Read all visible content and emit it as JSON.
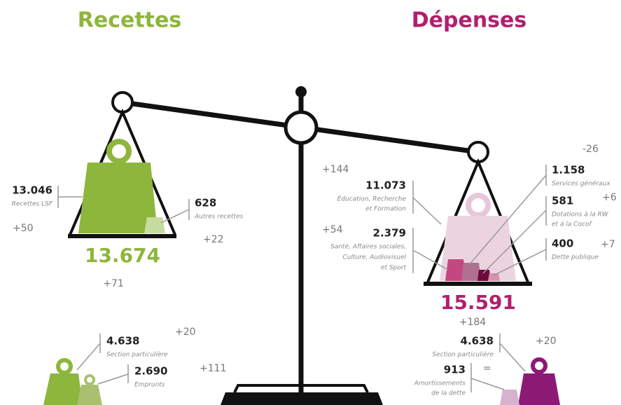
{
  "left": {
    "title": "Recettes",
    "items": [
      {
        "value": "13.046",
        "label": [
          "Recettes LSF"
        ],
        "change": "+50"
      },
      {
        "value": "628",
        "label": [
          "Autres recettes"
        ],
        "change": "+22"
      }
    ],
    "total": "13.674",
    "total_change": "+71",
    "bottom": [
      {
        "value": "4.638",
        "label": [
          "Section particulière"
        ],
        "change": "+20"
      },
      {
        "value": "2.690",
        "label": [
          "Emprunts"
        ],
        "change": "+111"
      }
    ]
  },
  "right": {
    "title": "Dépenses",
    "items": [
      {
        "value": "11.073",
        "label": [
          "Éducation, Recherche",
          "et Formation"
        ],
        "change": "+144"
      },
      {
        "value": "2.379",
        "label": [
          "Santé, Affaires sociales,",
          "Culture, Audiovisuel",
          "et Sport"
        ],
        "change": "+54"
      },
      {
        "value": "1.158",
        "label": [
          "Services généraux"
        ],
        "change": "-26"
      },
      {
        "value": "581",
        "label": [
          "Dotations à la RW",
          "et à la Cocof"
        ],
        "change": "+6"
      },
      {
        "value": "400",
        "label": [
          "Dette publique"
        ],
        "change": "+7"
      }
    ],
    "total": "15.591",
    "total_change": "+184",
    "bottom": [
      {
        "value": "4.638",
        "label": [
          "Section particulière"
        ],
        "change": "+20"
      },
      {
        "value": "913",
        "label": [
          "Amortissements",
          "de la dette"
        ],
        "change": "="
      }
    ]
  }
}
